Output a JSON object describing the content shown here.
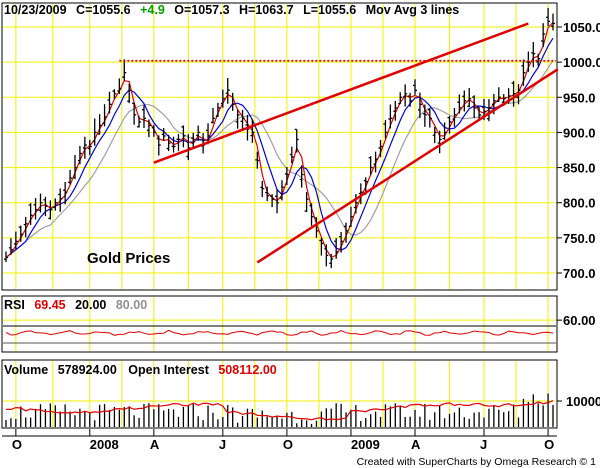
{
  "header": {
    "date": "10/23/2009",
    "close": "C=1055.6",
    "change": "+4.9",
    "open": "O=1057.3",
    "high": "H=1063.7",
    "low": "L=1055.6",
    "study": "Mov Avg 3 lines"
  },
  "annotation": "Gold Prices",
  "rsi": {
    "label": "RSI",
    "value": "69.45",
    "lower": "20.00",
    "upper": "80.00"
  },
  "volume": {
    "label": "Volume",
    "value": "578924.00",
    "oi_label": "Open Interest",
    "oi_value": "508112.00"
  },
  "credit": "Created with SuperCharts by Omega Research © 1",
  "colors": {
    "grid": "#f0f000",
    "price": "#000000",
    "ma_fast": "#e00000",
    "ma_mid": "#0000e0",
    "ma_slow": "#a0a0a0",
    "trendline": "#e00000",
    "change": "#00a000",
    "rsi_line": "#e00000"
  },
  "chart_data": [
    {
      "type": "ohlc",
      "title": "",
      "y_ticks": [
        "1050.0",
        "1000.0",
        "950.0",
        "900.0",
        "850.0",
        "800.0",
        "750.0",
        "700.0"
      ],
      "ylim": [
        680,
        1075
      ],
      "x_tick_labels": [
        "O",
        "2008",
        "A",
        "J",
        "O",
        "2009",
        "A",
        "J",
        "O"
      ],
      "grid": true,
      "series": [
        {
          "name": "Gold Prices",
          "kind": "weekly-bars",
          "values": [
            722,
            733,
            745,
            755,
            770,
            782,
            790,
            800,
            795,
            790,
            800,
            806,
            815,
            835,
            850,
            870,
            882,
            880,
            900,
            910,
            922,
            940,
            955,
            962,
            985,
            960,
            925,
            915,
            920,
            910,
            900,
            882,
            895,
            885,
            880,
            890,
            895,
            878,
            890,
            900,
            882,
            895,
            920,
            935,
            948,
            960,
            940,
            925,
            920,
            905,
            900,
            860,
            820,
            810,
            805,
            800,
            822,
            840,
            865,
            890,
            840,
            805,
            780,
            760,
            742,
            725,
            720,
            730,
            745,
            760,
            780,
            800,
            815,
            830,
            850,
            862,
            880,
            900,
            920,
            935,
            950,
            955,
            945,
            960,
            940,
            925,
            920,
            900,
            890,
            900,
            915,
            925,
            935,
            945,
            948,
            935,
            925,
            930,
            935,
            945,
            950,
            948,
            952,
            955,
            960,
            985,
            1000,
            1012,
            1005,
            1040,
            1058,
            1055
          ]
        }
      ],
      "resistance": 1002,
      "channel_upper": [
        {
          "x": 30,
          "y": 857
        },
        {
          "x": 106,
          "y": 1055
        }
      ],
      "channel_lower": [
        {
          "x": 51,
          "y": 715
        },
        {
          "x": 112,
          "y": 990
        }
      ]
    },
    {
      "type": "line",
      "title": "RSI",
      "y_ticks": [
        "60.00"
      ],
      "ylim": [
        40,
        75
      ],
      "series": [
        {
          "name": "RSI",
          "values": []
        }
      ]
    },
    {
      "type": "bar",
      "title": "Volume",
      "y_ticks": [
        "10000"
      ],
      "ylim": [
        0,
        20000
      ],
      "series": [
        {
          "name": "Volume",
          "values": []
        },
        {
          "name": "Open Interest",
          "values": []
        }
      ]
    }
  ]
}
